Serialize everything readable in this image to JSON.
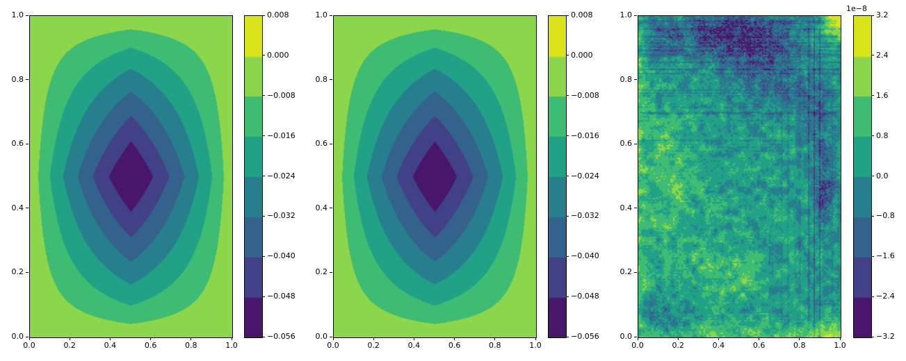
{
  "figure": {
    "background": "#ffffff",
    "kind": "matplotlib-three-panel-contour-figure"
  },
  "colors": {
    "viridis_bands": [
      "#481769",
      "#424086",
      "#33638d",
      "#277f8e",
      "#21a186",
      "#3fbc73",
      "#8bd64a",
      "#dae319"
    ],
    "spine": "#000000",
    "tick": "#000000",
    "text": "#000000"
  },
  "panels": [
    {
      "name": "solution-panel-1",
      "x_tick_labels": [
        "0.0",
        "0.2",
        "0.4",
        "0.6",
        "0.8",
        "1.0"
      ],
      "y_tick_labels": [
        "1.0",
        "0.8",
        "0.6",
        "0.4",
        "0.2",
        "0.0"
      ],
      "colorbar_tick_labels": [
        "0.008",
        "0.000",
        "−0.008",
        "−0.016",
        "−0.024",
        "−0.032",
        "−0.040",
        "−0.048",
        "−0.056"
      ]
    },
    {
      "name": "solution-panel-2",
      "x_tick_labels": [
        "0.0",
        "0.2",
        "0.4",
        "0.6",
        "0.8",
        "1.0"
      ],
      "y_tick_labels": [
        "1.0",
        "0.8",
        "0.6",
        "0.4",
        "0.2",
        "0.0"
      ],
      "colorbar_tick_labels": [
        "0.008",
        "0.000",
        "−0.008",
        "−0.016",
        "−0.024",
        "−0.032",
        "−0.040",
        "−0.048",
        "−0.056"
      ]
    },
    {
      "name": "error-panel",
      "x_tick_labels": [
        "0.0",
        "0.2",
        "0.4",
        "0.6",
        "0.8",
        "1.0"
      ],
      "y_tick_labels": [
        "1.0",
        "0.8",
        "0.6",
        "0.4",
        "0.2",
        "0.0"
      ],
      "colorbar_tick_labels": [
        "3.2",
        "2.4",
        "1.6",
        "0.8",
        "0.0",
        "−0.8",
        "−1.6",
        "−2.4",
        "−3.2"
      ],
      "colorbar_offset_label": "1e−8"
    }
  ],
  "chart_data": [
    {
      "type": "heatmap",
      "subtype": "filled_contour",
      "panel": "left",
      "x_range": [
        0.0,
        1.0
      ],
      "y_range": [
        0.0,
        1.0
      ],
      "x_ticks": [
        0.0,
        0.2,
        0.4,
        0.6,
        0.8,
        1.0
      ],
      "y_ticks": [
        0.0,
        0.2,
        0.4,
        0.6,
        0.8,
        1.0
      ],
      "contour_levels": [
        -0.056,
        -0.048,
        -0.04,
        -0.032,
        -0.024,
        -0.016,
        -0.008,
        0.0,
        0.008
      ],
      "value_on_boundary": 0.0,
      "value_at_center": -0.0585,
      "midline_level_crossings_x": {
        "-0.008": 0.045,
        "-0.016": 0.11,
        "-0.024": 0.18,
        "-0.032": 0.26,
        "-0.040": 0.31,
        "-0.048": 0.39
      },
      "colormap": "viridis",
      "grid": false,
      "legend_position": "right-colorbar",
      "description": "Smooth bowl-shaped scalar field on the unit square: zero on the boundary, minimum about -0.058 at (0.5, 0.5). Nested rounded-rectangle contour bands shrinking to a small dark ellipse at the center."
    },
    {
      "type": "heatmap",
      "subtype": "filled_contour",
      "panel": "middle",
      "x_range": [
        0.0,
        1.0
      ],
      "y_range": [
        0.0,
        1.0
      ],
      "x_ticks": [
        0.0,
        0.2,
        0.4,
        0.6,
        0.8,
        1.0
      ],
      "y_ticks": [
        0.0,
        0.2,
        0.4,
        0.6,
        0.8,
        1.0
      ],
      "contour_levels": [
        -0.056,
        -0.048,
        -0.04,
        -0.032,
        -0.024,
        -0.016,
        -0.008,
        0.0,
        0.008
      ],
      "value_on_boundary": 0.0,
      "value_at_center": -0.0585,
      "colormap": "viridis",
      "grid": false,
      "legend_position": "right-colorbar",
      "description": "Visually identical to the left panel (computed vs exact solution comparison)."
    },
    {
      "type": "heatmap",
      "subtype": "filled_contour",
      "panel": "right",
      "x_range": [
        0.0,
        1.0
      ],
      "y_range": [
        0.0,
        1.0
      ],
      "x_ticks": [
        0.0,
        0.2,
        0.4,
        0.6,
        0.8,
        1.0
      ],
      "y_ticks": [
        0.0,
        0.2,
        0.4,
        0.6,
        0.8,
        1.0
      ],
      "scale_factor": 1e-08,
      "offset_text": "1e−8",
      "contour_levels_times_1e8": [
        -3.2,
        -2.4,
        -1.6,
        -0.8,
        0.0,
        0.8,
        1.6,
        2.4,
        3.2
      ],
      "colormap": "viridis",
      "grid": false,
      "legend_position": "right-colorbar",
      "description": "Speckled error field of order 1e-8: mostly teal values between -0.8e-8 and 0.8e-8; dark negative blob near top-center (about -2.8e-8); bright yellow positive corner at top-right (about +3.2e-8); negative indigo streak patch on the right side at mid-height; green positive speckles at bottom-left, along the bottom edge, and down the left edge; horizontal and vertical streak artifacts throughout."
    }
  ]
}
